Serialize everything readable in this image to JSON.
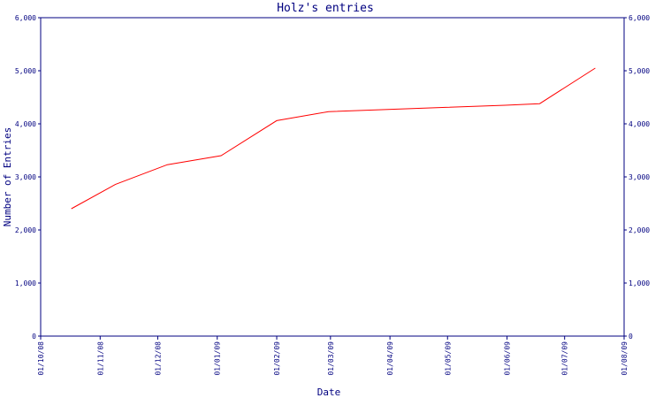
{
  "chart_data": {
    "type": "line",
    "title": "Holz's entries",
    "xlabel": "Date",
    "ylabel": "Number of Entries",
    "ylim": [
      0,
      6000
    ],
    "xlim": [
      "2008-10-01",
      "2009-08-01"
    ],
    "grid": false,
    "y_ticks": [
      "0",
      "1,000",
      "2,000",
      "3,000",
      "4,000",
      "5,000",
      "6,000"
    ],
    "y_tick_values": [
      0,
      1000,
      2000,
      3000,
      4000,
      5000,
      6000
    ],
    "x_ticks": [
      "01/10/08",
      "01/11/08",
      "01/12/08",
      "01/01/09",
      "01/02/09",
      "01/03/09",
      "01/04/09",
      "01/05/09",
      "01/06/09",
      "01/07/09",
      "01/08/09"
    ],
    "x_tick_values": [
      "2008-10-01",
      "2008-11-01",
      "2008-12-01",
      "2009-01-01",
      "2009-02-01",
      "2009-03-01",
      "2009-04-01",
      "2009-05-01",
      "2009-06-01",
      "2009-07-01",
      "2009-08-01"
    ],
    "series": [
      {
        "color": "#ff0000",
        "x": [
          "2008-10-17",
          "2008-11-09",
          "2008-12-06",
          "2009-01-03",
          "2009-02-01",
          "2009-02-28",
          "2009-03-31",
          "2009-04-30",
          "2009-05-31",
          "2009-06-18",
          "2009-07-17"
        ],
        "values": [
          2400,
          2860,
          3230,
          3400,
          4060,
          4230,
          4270,
          4310,
          4350,
          4380,
          5050
        ]
      }
    ]
  },
  "colors": {
    "axis": "#000080",
    "line": "#ff0000",
    "background": "#ffffff"
  }
}
